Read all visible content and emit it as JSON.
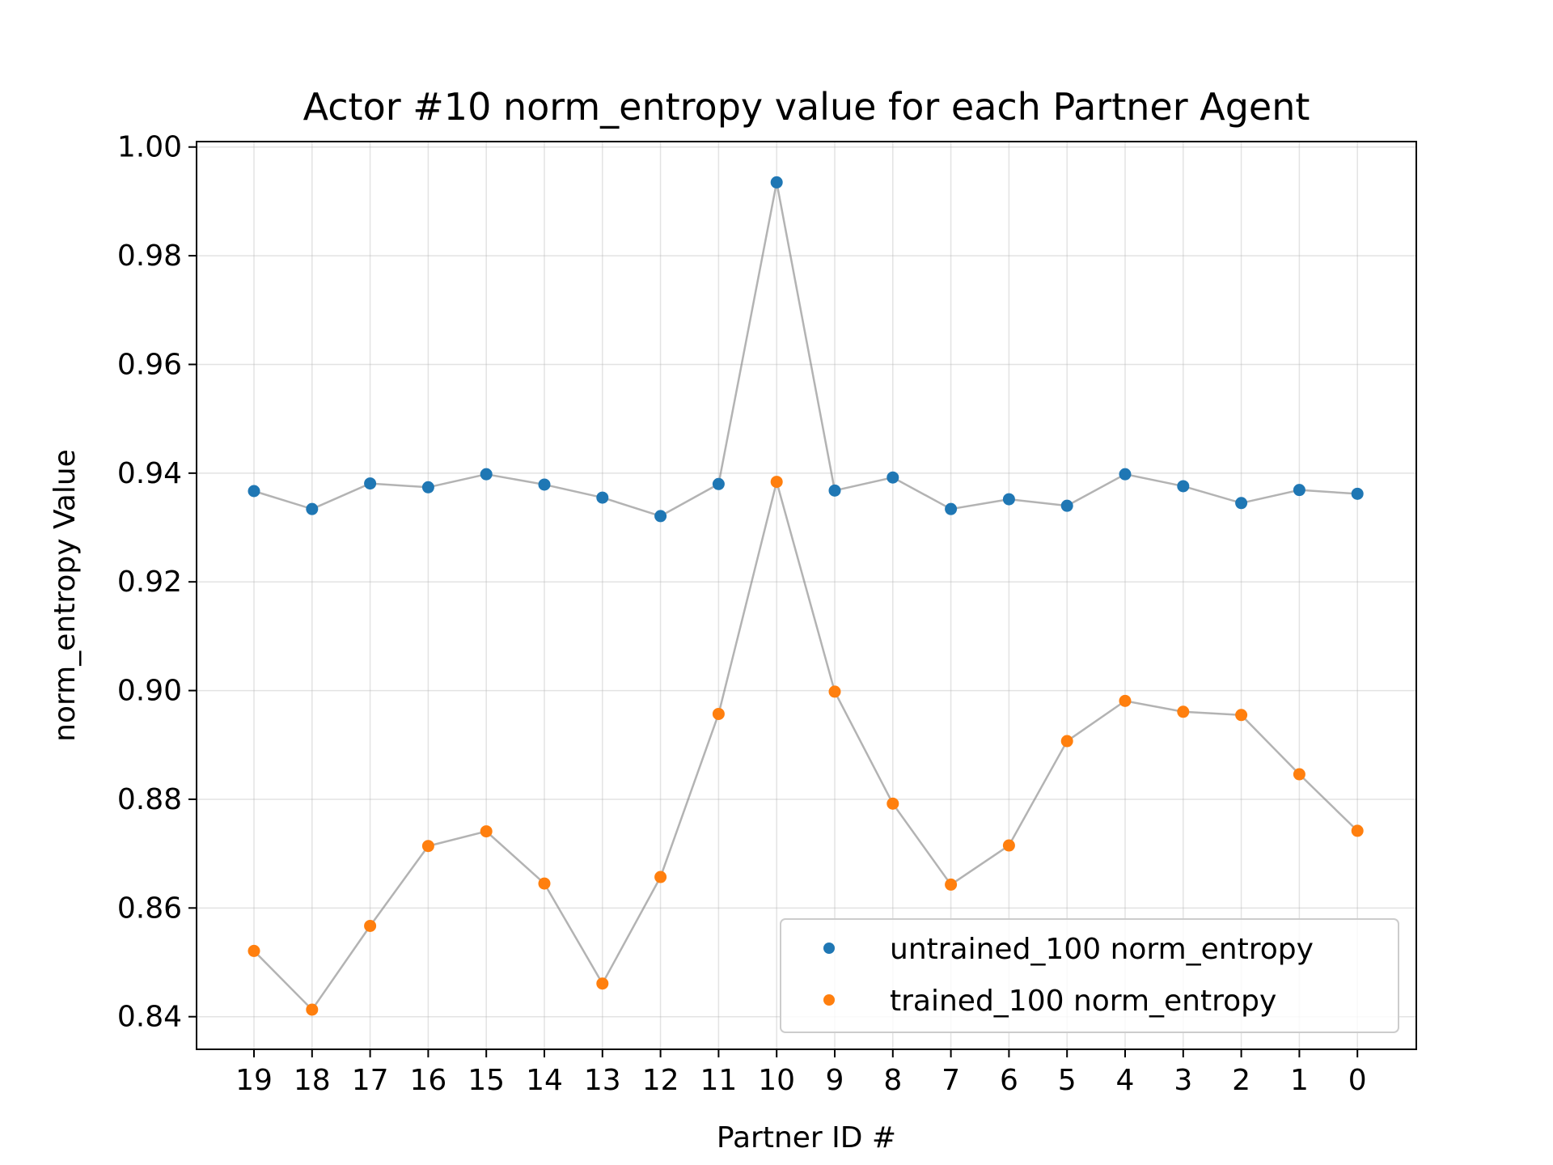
{
  "chart_data": {
    "type": "scatter",
    "title": "Actor #10 norm_entropy value for each Partner Agent",
    "xlabel": "Partner ID #",
    "ylabel": "norm_entropy Value",
    "categories": [
      "19",
      "18",
      "17",
      "16",
      "15",
      "14",
      "13",
      "12",
      "11",
      "10",
      "9",
      "8",
      "7",
      "6",
      "5",
      "4",
      "3",
      "2",
      "1",
      "0"
    ],
    "ylim": [
      0.834,
      1.001
    ],
    "yticks": [
      "0.84",
      "0.86",
      "0.88",
      "0.90",
      "0.92",
      "0.94",
      "0.96",
      "0.98",
      "1.00"
    ],
    "grid": true,
    "legend_position": "lower-right",
    "connector_color": "#808080",
    "series": [
      {
        "name": "untrained_100 norm_entropy",
        "color": "#1f77b4",
        "values": [
          0.9367,
          0.9334,
          0.9381,
          0.9374,
          0.9398,
          0.9379,
          0.9355,
          0.9321,
          0.938,
          0.9935,
          0.9368,
          0.9392,
          0.9334,
          0.9352,
          0.934,
          0.9398,
          0.9376,
          0.9345,
          0.9369,
          0.9362
        ]
      },
      {
        "name": "trained_100 norm_entropy",
        "color": "#ff7f0e",
        "values": [
          0.8521,
          0.8413,
          0.8567,
          0.8714,
          0.8741,
          0.8645,
          0.8461,
          0.8657,
          0.8957,
          0.9384,
          0.8998,
          0.8792,
          0.8643,
          0.8715,
          0.8907,
          0.8981,
          0.8961,
          0.8955,
          0.8846,
          0.8742
        ]
      }
    ]
  }
}
